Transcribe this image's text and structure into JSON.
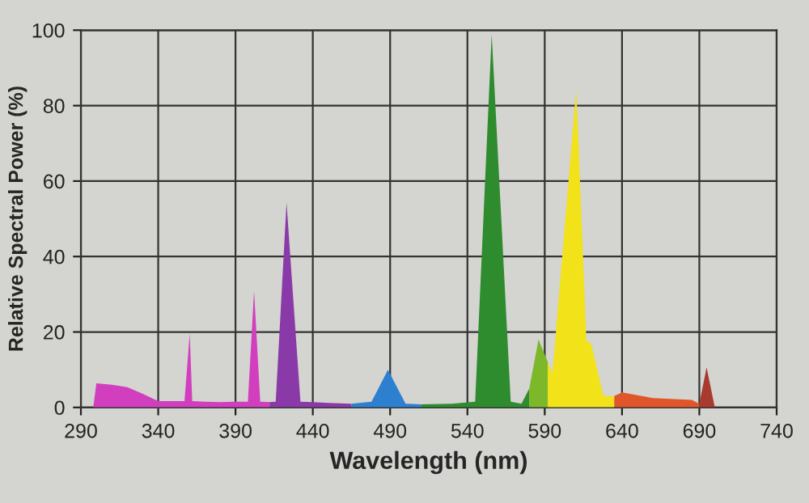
{
  "chart_data": {
    "type": "area",
    "xlabel": "Wavelength (nm)",
    "ylabel": "Relative Spectral Power (%)",
    "xlim": [
      290,
      740
    ],
    "xticks": [
      290,
      340,
      390,
      440,
      490,
      540,
      590,
      640,
      690,
      740
    ],
    "ylim": [
      0,
      100
    ],
    "yticks": [
      0,
      20,
      40,
      60,
      80,
      100
    ],
    "grid": true,
    "series": [
      {
        "color": "#d23fbe",
        "x": [
          298,
          300,
          310,
          320,
          330,
          340,
          355,
          357,
          360.4,
          362,
          370,
          380,
          390,
          398,
          402,
          406,
          412
        ],
        "values": [
          0,
          6.4,
          6,
          5.4,
          3.6,
          1.7,
          1.7,
          1.7,
          19.6,
          1.7,
          1.5,
          1.4,
          1.5,
          1.5,
          30.9,
          1.5,
          1.4
        ]
      },
      {
        "color": "#8a3aa8",
        "x": [
          412,
          416,
          423,
          432,
          440,
          450,
          465
        ],
        "values": [
          1.4,
          1.5,
          54.3,
          1.5,
          1.4,
          1.2,
          1
        ]
      },
      {
        "color": "#2d7fd0",
        "x": [
          465,
          478,
          488.6,
          500,
          510
        ],
        "values": [
          1,
          1.5,
          10,
          1,
          0.8
        ]
      },
      {
        "color": "#2e8b2e",
        "x": [
          510,
          530,
          545,
          555.7,
          568,
          575,
          580
        ],
        "values": [
          0.8,
          1,
          1.5,
          99,
          1.5,
          1,
          5
        ]
      },
      {
        "color": "#7cb82a",
        "x": [
          580,
          586,
          592
        ],
        "values": [
          5,
          18,
          12
        ]
      },
      {
        "color": "#f2e21a",
        "x": [
          592,
          595,
          610.4,
          617,
          620,
          628,
          635
        ],
        "values": [
          12,
          9,
          84.5,
          17.5,
          17,
          3,
          3
        ]
      },
      {
        "color": "#e0552a",
        "x": [
          635,
          640,
          660,
          685,
          690
        ],
        "values": [
          3,
          4,
          2.5,
          2,
          1
        ]
      },
      {
        "color": "#a83a30",
        "x": [
          690,
          694.7,
          700
        ],
        "values": [
          1,
          10.6,
          0
        ]
      }
    ]
  }
}
